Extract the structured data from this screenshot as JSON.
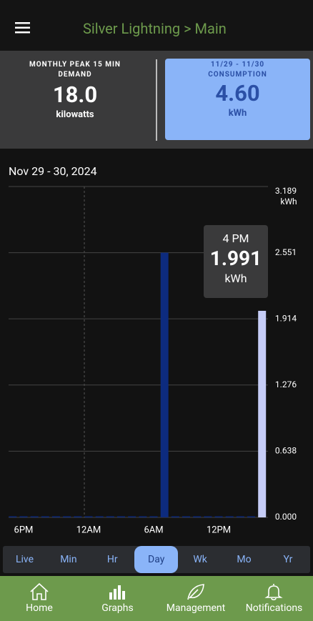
{
  "header": {
    "title": "Silver Lightning > Main"
  },
  "cards": [
    {
      "label": "MONTHLY PEAK 15 MIN DEMAND",
      "value": "18.0",
      "unit": "kilowatts"
    },
    {
      "period": "11/29 - 11/30",
      "label": "CONSUMPTION",
      "value": "4.60",
      "unit": "kWh"
    }
  ],
  "chart_data": {
    "type": "bar",
    "title": "Nov 29 - 30, 2024",
    "categories": [
      null,
      "6PM",
      null,
      null,
      null,
      null,
      null,
      "12AM",
      null,
      null,
      null,
      null,
      null,
      "6AM",
      null,
      null,
      null,
      null,
      null,
      "12PM",
      null,
      null,
      null,
      null
    ],
    "values": [
      0.01,
      0.01,
      0.01,
      0.01,
      0.01,
      0.01,
      0.01,
      0.01,
      0.01,
      0.01,
      0.01,
      0.01,
      0.01,
      0.01,
      2.551,
      0.01,
      0.01,
      0.01,
      0.01,
      0.01,
      0.01,
      0.01,
      0.01,
      1.991
    ],
    "colors": [
      "#0d2b7e",
      "#0d2b7e",
      "#0d2b7e",
      "#0d2b7e",
      "#0d2b7e",
      "#0d2b7e",
      "#0d2b7e",
      "#0d2b7e",
      "#0d2b7e",
      "#0d2b7e",
      "#0d2b7e",
      "#0d2b7e",
      "#0d2b7e",
      "#0d2b7e",
      "#0d2b7e",
      "#0d2b7e",
      "#0d2b7e",
      "#0d2b7e",
      "#0d2b7e",
      "#0d2b7e",
      "#0d2b7e",
      "#0d2b7e",
      "#0d2b7e",
      "#c6cdf7"
    ],
    "ylim": [
      0,
      3.189
    ],
    "yticks": [
      {
        "value": 0,
        "label": "0.000"
      },
      0.638,
      1.276,
      1.914,
      2.551,
      3.189
    ],
    "y_unit": "kWh",
    "grid": true,
    "tooltip": {
      "label": "4 PM",
      "unit": "kWh"
    }
  },
  "tabs": [
    "Live",
    "Min",
    "Hr",
    "Day",
    "Wk",
    "Mo",
    "Yr"
  ],
  "nav": [
    "Home",
    "Graphs",
    "Management",
    "Notifications"
  ]
}
